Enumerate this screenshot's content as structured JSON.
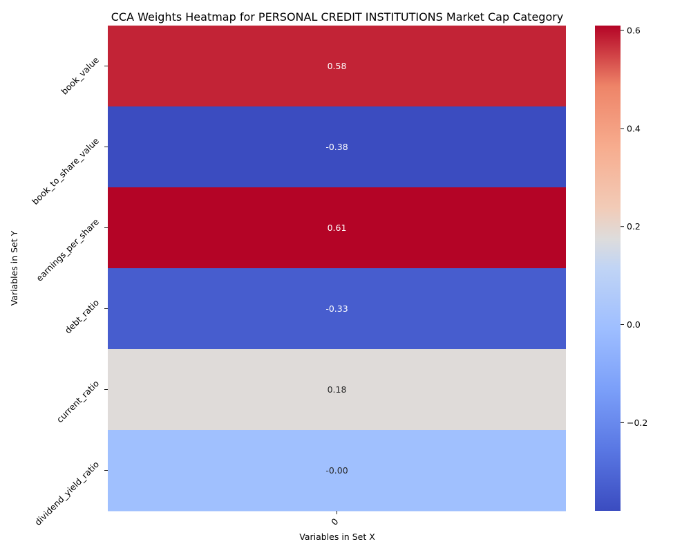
{
  "chart_data": {
    "type": "heatmap",
    "title": "CCA Weights Heatmap for PERSONAL CREDIT INSTITUTIONS Market Cap Category",
    "xlabel": "Variables in Set X",
    "ylabel": "Variables in Set Y",
    "x_categories": [
      "0"
    ],
    "y_categories": [
      "book_value",
      "book_to_share_value",
      "earnings_per_share",
      "debt_ratio",
      "current_ratio",
      "dividend_yield_ratio"
    ],
    "values": [
      0.58,
      -0.38,
      0.61,
      -0.33,
      0.18,
      -0.0
    ],
    "value_labels": [
      "0.58",
      "-0.38",
      "0.61",
      "-0.33",
      "0.18",
      "-0.00"
    ],
    "colormap": "coolwarm",
    "vmin": -0.38,
    "vmax": 0.61,
    "colorbar_ticks": [
      {
        "value": -0.2,
        "label": "−0.2"
      },
      {
        "value": 0.0,
        "label": "0.0"
      },
      {
        "value": 0.2,
        "label": "0.2"
      },
      {
        "value": 0.4,
        "label": "0.4"
      },
      {
        "value": 0.6,
        "label": "0.6"
      }
    ],
    "grid": false,
    "legend": "colorbar-right"
  }
}
